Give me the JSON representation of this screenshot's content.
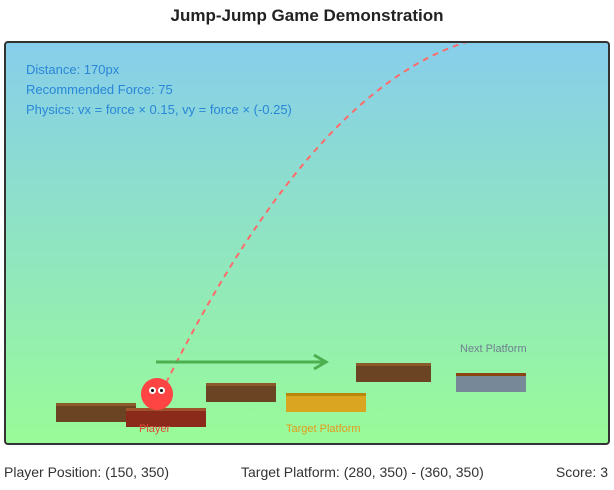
{
  "title": "Jump-Jump Game Demonstration",
  "info": {
    "distance": "Distance: 170px",
    "recommended_force": "Recommended Force: 75",
    "physics": "Physics: vx = force × 0.15, vy = force × (-0.25)"
  },
  "labels": {
    "player": "Player",
    "target_platform": "Target Platform",
    "next_platform": "Next Platform"
  },
  "footer": {
    "player_position": "Player Position: (150, 350)",
    "target_platform": "Target Platform: (280, 350) - (360, 350)",
    "score": "Score: 3"
  },
  "colors": {
    "player": "#ff4444",
    "trajectory": "#ff6b6b",
    "arrow": "#4caf50",
    "target_label": "#e69a1a",
    "player_label": "#e04a3a",
    "next_label": "#708090",
    "info_text": "#2a86d8"
  }
}
